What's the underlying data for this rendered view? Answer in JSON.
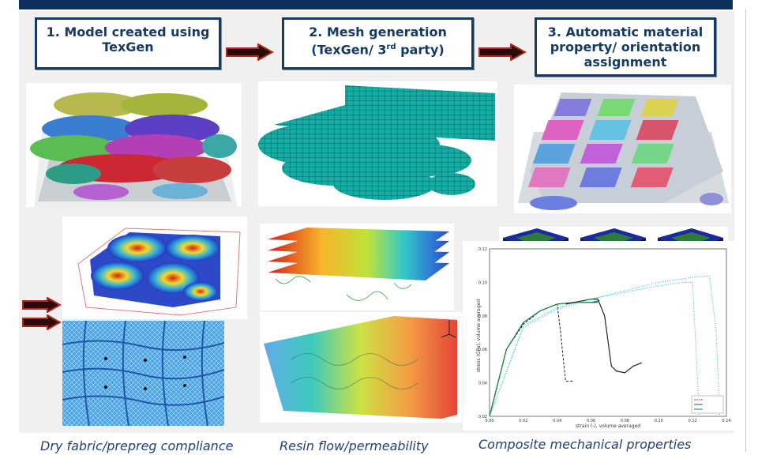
{
  "steps": [
    {
      "line1": "1. Model created using",
      "line2": "TexGen"
    },
    {
      "line1": "2. Mesh generation",
      "line2_pre": "(TexGen/ 3",
      "line2_sup": "rd",
      "line2_post": " party)"
    },
    {
      "line1": "3. Automatic material",
      "line2": "property/ orientation",
      "line3": "assignment"
    }
  ],
  "captions": {
    "left": "Dry fabric/prepreg compliance",
    "middle": "Resin flow/permeability",
    "right": "Composite mechanical properties"
  },
  "icons": [
    "right-arrow-icon"
  ],
  "chart_data": {
    "type": "line",
    "xlabel": "strain (-), volume averaged",
    "ylabel": "stress (GPa), volume averaged",
    "xlim": [
      0.0,
      0.14
    ],
    "ylim": [
      0.02,
      0.12
    ],
    "xticks": [
      "0.00",
      "0.02",
      "0.04",
      "0.06",
      "0.08",
      "0.10",
      "0.12",
      "0.14"
    ],
    "yticks": [
      "0.02",
      "0.04",
      "0.06",
      "0.08",
      "0.10",
      "0.12"
    ],
    "series": [
      {
        "color": "#000000",
        "style": "dashed",
        "x": [
          0.0,
          0.01,
          0.02,
          0.03,
          0.04,
          0.042,
          0.044,
          0.045,
          0.05
        ],
        "y": [
          0.02,
          0.06,
          0.075,
          0.083,
          0.087,
          0.07,
          0.05,
          0.041,
          0.041
        ]
      },
      {
        "color": "#1f4fd6",
        "style": "solid",
        "x": [
          0.0,
          0.01,
          0.02,
          0.03,
          0.04,
          0.05,
          0.06,
          0.065
        ],
        "y": [
          0.02,
          0.06,
          0.076,
          0.083,
          0.087,
          0.088,
          0.088,
          0.089
        ]
      },
      {
        "color": "#1c8a2a",
        "style": "solid",
        "x": [
          0.0,
          0.01,
          0.02,
          0.03,
          0.04,
          0.05,
          0.06,
          0.064
        ],
        "y": [
          0.02,
          0.06,
          0.076,
          0.083,
          0.087,
          0.088,
          0.088,
          0.088
        ]
      },
      {
        "color": "#222222",
        "style": "solid",
        "x": [
          0.045,
          0.055,
          0.06,
          0.064,
          0.068,
          0.07,
          0.072,
          0.075,
          0.08,
          0.085,
          0.09
        ],
        "y": [
          0.087,
          0.089,
          0.09,
          0.09,
          0.08,
          0.065,
          0.05,
          0.047,
          0.046,
          0.05,
          0.052
        ]
      },
      {
        "color": "#2ab4d6",
        "style": "dotted",
        "x": [
          0.0,
          0.02,
          0.04,
          0.06,
          0.08,
          0.1,
          0.115,
          0.12,
          0.122,
          0.124
        ],
        "y": [
          0.02,
          0.074,
          0.085,
          0.09,
          0.094,
          0.098,
          0.1,
          0.1,
          0.06,
          0.02
        ]
      },
      {
        "color": "#2ab4d6",
        "style": "dotted",
        "x": [
          0.0,
          0.02,
          0.04,
          0.06,
          0.08,
          0.1,
          0.12,
          0.13,
          0.134,
          0.136
        ],
        "y": [
          0.02,
          0.073,
          0.084,
          0.09,
          0.095,
          0.1,
          0.103,
          0.104,
          0.07,
          0.02
        ]
      }
    ]
  }
}
